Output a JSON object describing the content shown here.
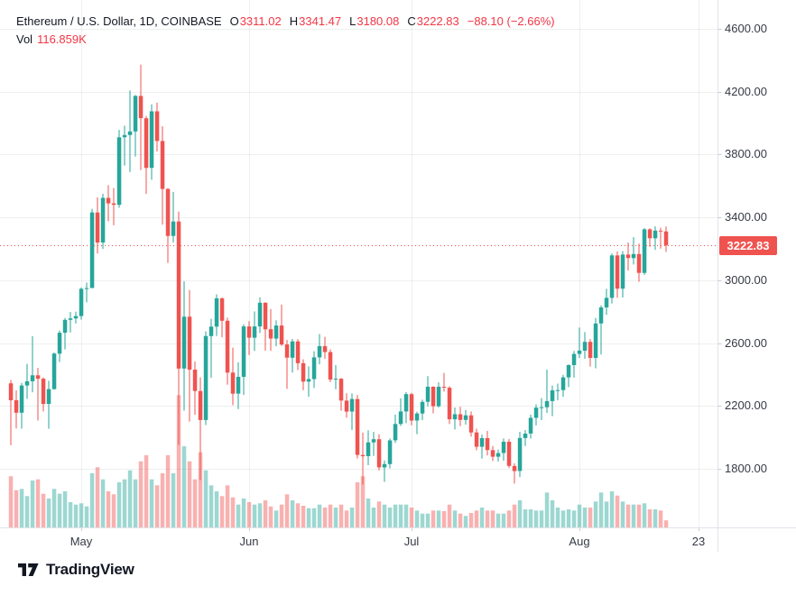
{
  "header": {
    "title": "Ethereum / U.S. Dollar, 1D, COINBASE",
    "ohlc": {
      "o_label": "O",
      "o": "3311.02",
      "h_label": "H",
      "h": "3341.47",
      "l_label": "L",
      "l": "3180.08",
      "c_label": "C",
      "c": "3222.83"
    },
    "change": "−88.10 (−2.66%)",
    "vol_label": "Vol",
    "vol_value": "116.859K"
  },
  "price_axis": {
    "last_price": "3222.83",
    "tick_format": "2dp"
  },
  "footer": {
    "brand": "TradingView"
  },
  "colors": {
    "up": "#26a69a",
    "down": "#ef5350",
    "volume_up": "rgba(38,166,154,0.45)",
    "volume_down": "rgba(239,83,80,0.45)",
    "grid": "rgba(42,46,57,0.08)",
    "axis_line": "#e0e3eb",
    "axis_text": "#363a45",
    "header_text": "#131722",
    "value_text": "#f23645",
    "last_price_line": "#ef5350",
    "badge_bg": "#ef5350"
  },
  "chart_data": {
    "type": "candlestick",
    "title": "Ethereum / U.S. Dollar, 1D, COINBASE",
    "exchange": "COINBASE",
    "interval": "1D",
    "legend_position": "top-left",
    "grid": true,
    "y_axis": {
      "side": "right",
      "ticks": [
        4600,
        4200,
        3800,
        3400,
        3000,
        2600,
        2200,
        1800
      ],
      "visible_range": [
        1427,
        4785
      ]
    },
    "x_axis": {
      "labels": [
        {
          "text": "May",
          "day_index": 13
        },
        {
          "text": "Jun",
          "day_index": 44
        },
        {
          "text": "Jul",
          "day_index": 74
        },
        {
          "text": "Aug",
          "day_index": 105
        },
        {
          "text": "23",
          "day_index": 127
        }
      ]
    },
    "last_price": 3222.83,
    "last_volume_k": 116.859,
    "volume_unit": "K",
    "candles_note": "each row = [date(MM-DD), open, high, low, close, volume_in_thousands]; values estimated from chart",
    "candles": [
      [
        "04-18",
        2344,
        2365,
        1950,
        2236,
        850
      ],
      [
        "04-19",
        2236,
        2300,
        2057,
        2157,
        620
      ],
      [
        "04-20",
        2157,
        2346,
        2055,
        2330,
        640
      ],
      [
        "04-21",
        2330,
        2468,
        2245,
        2357,
        520
      ],
      [
        "04-22",
        2357,
        2644,
        2287,
        2395,
        780
      ],
      [
        "04-23",
        2395,
        2442,
        2107,
        2373,
        800
      ],
      [
        "04-24",
        2373,
        2382,
        2165,
        2213,
        560
      ],
      [
        "04-25",
        2213,
        2360,
        2055,
        2307,
        480
      ],
      [
        "04-26",
        2307,
        2540,
        2303,
        2533,
        640
      ],
      [
        "04-27",
        2533,
        2680,
        2480,
        2666,
        560
      ],
      [
        "04-28",
        2666,
        2760,
        2560,
        2748,
        600
      ],
      [
        "04-29",
        2748,
        2798,
        2668,
        2757,
        420
      ],
      [
        "04-30",
        2757,
        2800,
        2724,
        2772,
        380
      ],
      [
        "05-01",
        2772,
        2954,
        2750,
        2945,
        400
      ],
      [
        "05-02",
        2945,
        2985,
        2860,
        2950,
        350
      ],
      [
        "05-03",
        2950,
        3454,
        2950,
        3431,
        900
      ],
      [
        "05-04",
        3431,
        3527,
        3170,
        3240,
        1000
      ],
      [
        "05-05",
        3240,
        3550,
        3200,
        3524,
        800
      ],
      [
        "05-06",
        3524,
        3605,
        3375,
        3489,
        600
      ],
      [
        "05-07",
        3489,
        3587,
        3350,
        3480,
        550
      ],
      [
        "05-08",
        3480,
        3957,
        3462,
        3910,
        750
      ],
      [
        "05-09",
        3910,
        3984,
        3730,
        3924,
        800
      ],
      [
        "05-10",
        3924,
        4208,
        3688,
        3947,
        950
      ],
      [
        "05-11",
        3947,
        4179,
        3787,
        4173,
        800
      ],
      [
        "05-12",
        4173,
        4372,
        3701,
        4031,
        1100
      ],
      [
        "05-13",
        4031,
        4046,
        3550,
        3715,
        1200
      ],
      [
        "05-14",
        3715,
        4120,
        3640,
        4075,
        800
      ],
      [
        "05-15",
        4075,
        4130,
        3820,
        3886,
        700
      ],
      [
        "05-16",
        3886,
        3980,
        3354,
        3581,
        900
      ],
      [
        "05-17",
        3581,
        3587,
        3110,
        3282,
        1200
      ],
      [
        "05-18",
        3282,
        3562,
        3240,
        3374,
        900
      ],
      [
        "05-19",
        3374,
        3437,
        1952,
        2438,
        2200
      ],
      [
        "05-20",
        2438,
        2993,
        2170,
        2768,
        1350
      ],
      [
        "05-21",
        2768,
        2938,
        2101,
        2431,
        1100
      ],
      [
        "05-22",
        2431,
        2483,
        2144,
        2295,
        800
      ],
      [
        "05-23",
        2295,
        2382,
        1728,
        2110,
        1250
      ],
      [
        "05-24",
        2110,
        2675,
        2079,
        2645,
        950
      ],
      [
        "05-25",
        2645,
        2755,
        2380,
        2705,
        700
      ],
      [
        "05-26",
        2705,
        2910,
        2645,
        2885,
        600
      ],
      [
        "05-27",
        2885,
        2890,
        2637,
        2742,
        520
      ],
      [
        "05-28",
        2742,
        2762,
        2335,
        2412,
        700
      ],
      [
        "05-29",
        2412,
        2571,
        2205,
        2278,
        500
      ],
      [
        "05-30",
        2278,
        2478,
        2180,
        2385,
        380
      ],
      [
        "05-31",
        2385,
        2720,
        2270,
        2706,
        480
      ],
      [
        "06-01",
        2706,
        2740,
        2525,
        2634,
        420
      ],
      [
        "06-02",
        2634,
        2802,
        2550,
        2706,
        380
      ],
      [
        "06-03",
        2706,
        2891,
        2665,
        2857,
        400
      ],
      [
        "06-04",
        2857,
        2860,
        2552,
        2688,
        450
      ],
      [
        "06-05",
        2688,
        2817,
        2551,
        2629,
        350
      ],
      [
        "06-06",
        2629,
        2745,
        2580,
        2712,
        280
      ],
      [
        "06-07",
        2712,
        2845,
        2582,
        2591,
        380
      ],
      [
        "06-08",
        2591,
        2620,
        2309,
        2507,
        550
      ],
      [
        "06-09",
        2507,
        2626,
        2412,
        2611,
        450
      ],
      [
        "06-10",
        2611,
        2625,
        2428,
        2472,
        400
      ],
      [
        "06-11",
        2472,
        2497,
        2300,
        2355,
        360
      ],
      [
        "06-12",
        2355,
        2452,
        2258,
        2371,
        320
      ],
      [
        "06-13",
        2371,
        2548,
        2314,
        2509,
        320
      ],
      [
        "06-14",
        2509,
        2658,
        2465,
        2581,
        380
      ],
      [
        "06-15",
        2581,
        2640,
        2500,
        2543,
        330
      ],
      [
        "06-16",
        2543,
        2560,
        2352,
        2368,
        380
      ],
      [
        "06-17",
        2368,
        2460,
        2307,
        2373,
        330
      ],
      [
        "06-18",
        2373,
        2378,
        2170,
        2234,
        380
      ],
      [
        "06-19",
        2234,
        2280,
        2125,
        2164,
        280
      ],
      [
        "06-20",
        2164,
        2280,
        2047,
        2244,
        330
      ],
      [
        "06-21",
        2244,
        2270,
        1866,
        1888,
        750
      ],
      [
        "06-22",
        1888,
        2030,
        1700,
        1880,
        850
      ],
      [
        "06-23",
        1880,
        2045,
        1823,
        1968,
        480
      ],
      [
        "06-24",
        1968,
        2035,
        1882,
        1988,
        330
      ],
      [
        "06-25",
        1988,
        2020,
        1790,
        1809,
        430
      ],
      [
        "06-26",
        1809,
        1853,
        1717,
        1830,
        380
      ],
      [
        "06-27",
        1830,
        1992,
        1802,
        1981,
        330
      ],
      [
        "06-28",
        1981,
        2145,
        1965,
        2085,
        380
      ],
      [
        "06-29",
        2085,
        2248,
        2073,
        2165,
        380
      ],
      [
        "06-30",
        2165,
        2288,
        2090,
        2275,
        380
      ],
      [
        "07-01",
        2275,
        2283,
        2077,
        2107,
        330
      ],
      [
        "07-02",
        2107,
        2163,
        2020,
        2152,
        280
      ],
      [
        "07-03",
        2152,
        2240,
        2110,
        2226,
        230
      ],
      [
        "07-04",
        2226,
        2390,
        2197,
        2322,
        230
      ],
      [
        "07-05",
        2322,
        2325,
        2153,
        2198,
        280
      ],
      [
        "07-06",
        2198,
        2350,
        2190,
        2322,
        280
      ],
      [
        "07-07",
        2322,
        2410,
        2291,
        2316,
        270
      ],
      [
        "07-08",
        2316,
        2325,
        2085,
        2115,
        380
      ],
      [
        "07-09",
        2115,
        2190,
        2050,
        2147,
        280
      ],
      [
        "07-10",
        2147,
        2195,
        2072,
        2111,
        230
      ],
      [
        "07-11",
        2111,
        2174,
        2081,
        2140,
        190
      ],
      [
        "07-12",
        2140,
        2165,
        2005,
        2031,
        240
      ],
      [
        "07-13",
        2031,
        2056,
        1918,
        1940,
        280
      ],
      [
        "07-14",
        1940,
        2018,
        1865,
        1995,
        330
      ],
      [
        "07-15",
        1995,
        2041,
        1885,
        1919,
        280
      ],
      [
        "07-16",
        1919,
        1945,
        1849,
        1877,
        280
      ],
      [
        "07-17",
        1877,
        1922,
        1846,
        1900,
        230
      ],
      [
        "07-18",
        1900,
        1993,
        1852,
        1972,
        230
      ],
      [
        "07-19",
        1972,
        1990,
        1805,
        1818,
        280
      ],
      [
        "07-20",
        1818,
        1835,
        1706,
        1786,
        380
      ],
      [
        "07-21",
        1786,
        2035,
        1747,
        1996,
        450
      ],
      [
        "07-22",
        1996,
        2047,
        1945,
        2024,
        300
      ],
      [
        "07-23",
        2024,
        2145,
        1993,
        2124,
        300
      ],
      [
        "07-24",
        2124,
        2210,
        2076,
        2189,
        280
      ],
      [
        "07-25",
        2189,
        2250,
        2110,
        2192,
        280
      ],
      [
        "07-26",
        2192,
        2431,
        2155,
        2231,
        580
      ],
      [
        "07-27",
        2231,
        2329,
        2135,
        2299,
        450
      ],
      [
        "07-28",
        2299,
        2342,
        2236,
        2301,
        330
      ],
      [
        "07-29",
        2301,
        2398,
        2258,
        2382,
        280
      ],
      [
        "07-30",
        2382,
        2465,
        2320,
        2460,
        300
      ],
      [
        "07-31",
        2460,
        2550,
        2380,
        2531,
        280
      ],
      [
        "08-01",
        2531,
        2699,
        2505,
        2552,
        380
      ],
      [
        "08-02",
        2552,
        2670,
        2500,
        2608,
        330
      ],
      [
        "08-03",
        2608,
        2626,
        2450,
        2506,
        330
      ],
      [
        "08-04",
        2506,
        2760,
        2440,
        2725,
        430
      ],
      [
        "08-05",
        2725,
        2840,
        2527,
        2827,
        580
      ],
      [
        "08-06",
        2827,
        2945,
        2780,
        2888,
        430
      ],
      [
        "08-07",
        2888,
        3170,
        2852,
        3158,
        600
      ],
      [
        "08-08",
        3158,
        3184,
        2888,
        2946,
        530
      ],
      [
        "08-09",
        2946,
        3185,
        2890,
        3163,
        430
      ],
      [
        "08-10",
        3163,
        3240,
        3062,
        3141,
        380
      ],
      [
        "08-11",
        3141,
        3274,
        3100,
        3167,
        380
      ],
      [
        "08-12",
        3167,
        3233,
        2990,
        3047,
        380
      ],
      [
        "08-13",
        3047,
        3332,
        3034,
        3324,
        400
      ],
      [
        "08-14",
        3324,
        3331,
        3213,
        3267,
        300
      ],
      [
        "08-15",
        3267,
        3343,
        3193,
        3316,
        300
      ],
      [
        "08-16",
        3316,
        3334,
        3201,
        3311,
        280
      ],
      [
        "08-17",
        3311.02,
        3341.47,
        3180.08,
        3222.83,
        116.859
      ]
    ]
  }
}
